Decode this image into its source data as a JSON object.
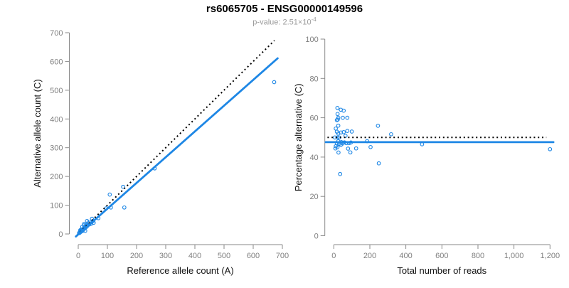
{
  "header": {
    "title": "rs6065705 - ENSG00000149596",
    "subtitle_prefix": "p-value: 2.51×10",
    "subtitle_exponent": "-4"
  },
  "colors": {
    "accent_blue": "#1E87E5",
    "dotted_black": "#000000",
    "axis_gray": "#8a8a8a",
    "tick_label_gray": "#7f7f7f",
    "axis_title_black": "#111111",
    "subtitle_gray": "#9b9b9b"
  },
  "chart_data": {
    "figure_title": "rs6065705 - ENSG00000149596",
    "figure_subtitle": "p-value: 2.51×10⁻⁴",
    "plots": [
      {
        "type": "scatter",
        "xlabel": "Reference allele count (A)",
        "ylabel": "Alternative allele count (C)",
        "xlim": [
          0,
          700
        ],
        "ylim": [
          0,
          700
        ],
        "xticks": [
          0,
          100,
          200,
          300,
          400,
          500,
          600,
          700
        ],
        "xtick_labels": [
          "0",
          "100",
          "200",
          "300",
          "400",
          "500",
          "600",
          "700"
        ],
        "yticks": [
          0,
          100,
          200,
          300,
          400,
          500,
          600,
          700
        ],
        "ytick_labels": [
          "0",
          "100",
          "200",
          "300",
          "400",
          "500",
          "600",
          "700"
        ],
        "grid": false,
        "legend": "none",
        "points": [
          [
            3,
            3
          ],
          [
            5,
            4
          ],
          [
            6,
            5
          ],
          [
            5,
            6
          ],
          [
            9,
            8
          ],
          [
            13,
            12
          ],
          [
            16,
            14
          ],
          [
            21,
            18
          ],
          [
            26,
            23
          ],
          [
            31,
            28
          ],
          [
            37,
            33
          ],
          [
            45,
            40
          ],
          [
            7,
            13
          ],
          [
            14,
            25
          ],
          [
            20,
            35
          ],
          [
            8,
            13
          ],
          [
            10,
            15
          ],
          [
            20,
            30
          ],
          [
            30,
            45
          ],
          [
            9,
            13
          ],
          [
            7,
            10
          ],
          [
            11,
            14
          ],
          [
            35,
            40
          ],
          [
            19,
            21
          ],
          [
            47,
            53
          ],
          [
            12,
            13
          ],
          [
            26,
            29
          ],
          [
            8,
            9
          ],
          [
            32,
            33
          ],
          [
            10,
            10
          ],
          [
            15,
            15
          ],
          [
            22,
            20
          ],
          [
            50,
            45
          ],
          [
            11,
            9
          ],
          [
            15,
            11
          ],
          [
            44,
            35
          ],
          [
            53,
            39
          ],
          [
            69,
            55
          ],
          [
            96,
            89
          ],
          [
            112,
            92
          ],
          [
            158,
            92
          ],
          [
            24,
            11
          ],
          [
            108,
            137
          ],
          [
            154,
            164
          ],
          [
            262,
            228
          ],
          [
            672,
            528
          ]
        ],
        "dotted_line": {
          "meaning": "identity y = x",
          "x1": -4,
          "y1": -4,
          "x2": 673,
          "y2": 673
        },
        "fit_line": {
          "meaning": "fitted proportion line",
          "x1": -8,
          "y1": -9,
          "x2": 684,
          "y2": 611
        }
      },
      {
        "type": "scatter",
        "xlabel": "Total number of reads",
        "ylabel": "Percentage alternative (C)",
        "xlim": [
          0,
          1200
        ],
        "ylim": [
          0,
          100
        ],
        "xticks": [
          0,
          200,
          400,
          600,
          800,
          1000,
          1200
        ],
        "xtick_labels": [
          "0",
          "200",
          "400",
          "600",
          "800",
          "1,000",
          "1,200"
        ],
        "yticks": [
          0,
          20,
          40,
          60,
          80,
          100
        ],
        "ytick_labels": [
          "0",
          "20",
          "40",
          "60",
          "80",
          "100"
        ],
        "grid": false,
        "legend": "none",
        "points": [
          [
            6,
            50.0
          ],
          [
            9,
            44.4
          ],
          [
            11,
            45.5
          ],
          [
            11,
            54.5
          ],
          [
            17,
            47.1
          ],
          [
            25,
            48.0
          ],
          [
            30,
            46.7
          ],
          [
            39,
            46.2
          ],
          [
            49,
            46.9
          ],
          [
            59,
            47.5
          ],
          [
            70,
            47.1
          ],
          [
            85,
            47.1
          ],
          [
            20,
            65.0
          ],
          [
            39,
            64.1
          ],
          [
            55,
            63.6
          ],
          [
            21,
            61.9
          ],
          [
            25,
            60.0
          ],
          [
            50,
            60.0
          ],
          [
            75,
            60.0
          ],
          [
            22,
            59.1
          ],
          [
            17,
            58.8
          ],
          [
            25,
            56.0
          ],
          [
            75,
            53.3
          ],
          [
            40,
            52.5
          ],
          [
            100,
            53.0
          ],
          [
            25,
            52.0
          ],
          [
            55,
            52.7
          ],
          [
            17,
            52.9
          ],
          [
            65,
            50.8
          ],
          [
            20,
            50.0
          ],
          [
            30,
            50.0
          ],
          [
            42,
            47.6
          ],
          [
            95,
            47.4
          ],
          [
            20,
            45.0
          ],
          [
            26,
            42.3
          ],
          [
            79,
            44.3
          ],
          [
            92,
            42.4
          ],
          [
            124,
            44.4
          ],
          [
            185,
            48.1
          ],
          [
            204,
            45.1
          ],
          [
            250,
            36.8
          ],
          [
            35,
            31.4
          ],
          [
            245,
            55.9
          ],
          [
            318,
            51.6
          ],
          [
            490,
            46.5
          ],
          [
            1200,
            44.0
          ]
        ],
        "dotted_line": {
          "meaning": "50% balanced expression",
          "x1": -35,
          "y1": 50,
          "x2": 1180,
          "y2": 50
        },
        "fit_line": {
          "meaning": "fitted percentage",
          "x1": -45,
          "y1": 47.6,
          "x2": 1219,
          "y2": 47.6
        }
      }
    ]
  }
}
